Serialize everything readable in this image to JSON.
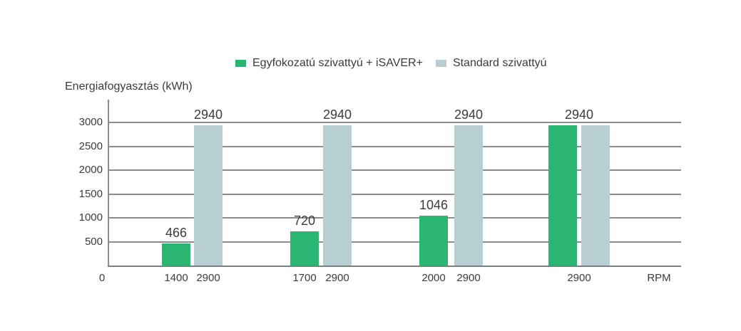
{
  "chart_data": {
    "type": "bar",
    "title": "Energiafogyasztás (kWh)",
    "x_unit": "RPM",
    "x_origin": "0",
    "ylim": [
      0,
      3000
    ],
    "y_ticks": [
      3000,
      2500,
      2000,
      1500,
      1000,
      500
    ],
    "grid": true,
    "legend_position": "top-center",
    "legend": [
      {
        "name": "Egyfokozatú szivattyú + iSAVER+",
        "color": "#2bb573"
      },
      {
        "name": "Standard szivattyú",
        "color": "#b7ced3"
      }
    ],
    "series_names": [
      "Egyfokozatú szivattyú + iSAVER+",
      "Standard szivattyú"
    ],
    "groups": [
      {
        "bars": [
          {
            "series": 0,
            "value": 466,
            "label": "466",
            "rpm": "1400"
          },
          {
            "series": 1,
            "value": 2940,
            "label": "2940",
            "rpm": "2900"
          }
        ]
      },
      {
        "bars": [
          {
            "series": 0,
            "value": 720,
            "label": "720",
            "rpm": "1700"
          },
          {
            "series": 1,
            "value": 2940,
            "label": "2940",
            "rpm": "2900"
          }
        ]
      },
      {
        "bars": [
          {
            "series": 0,
            "value": 1046,
            "label": "1046",
            "rpm": "2000"
          },
          {
            "series": 1,
            "value": 2940,
            "label": "2940",
            "rpm": "2900"
          }
        ]
      },
      {
        "bars": [
          {
            "series": 0,
            "value": 2940
          },
          {
            "series": 1,
            "value": 2940
          }
        ],
        "shared_label": "2940",
        "shared_rpm": "2900"
      }
    ],
    "colors": {
      "accent_green": "#2bb573",
      "accent_gray": "#b7ced3",
      "gridline": "#8c8c8c",
      "text": "#3c3c3c"
    }
  }
}
